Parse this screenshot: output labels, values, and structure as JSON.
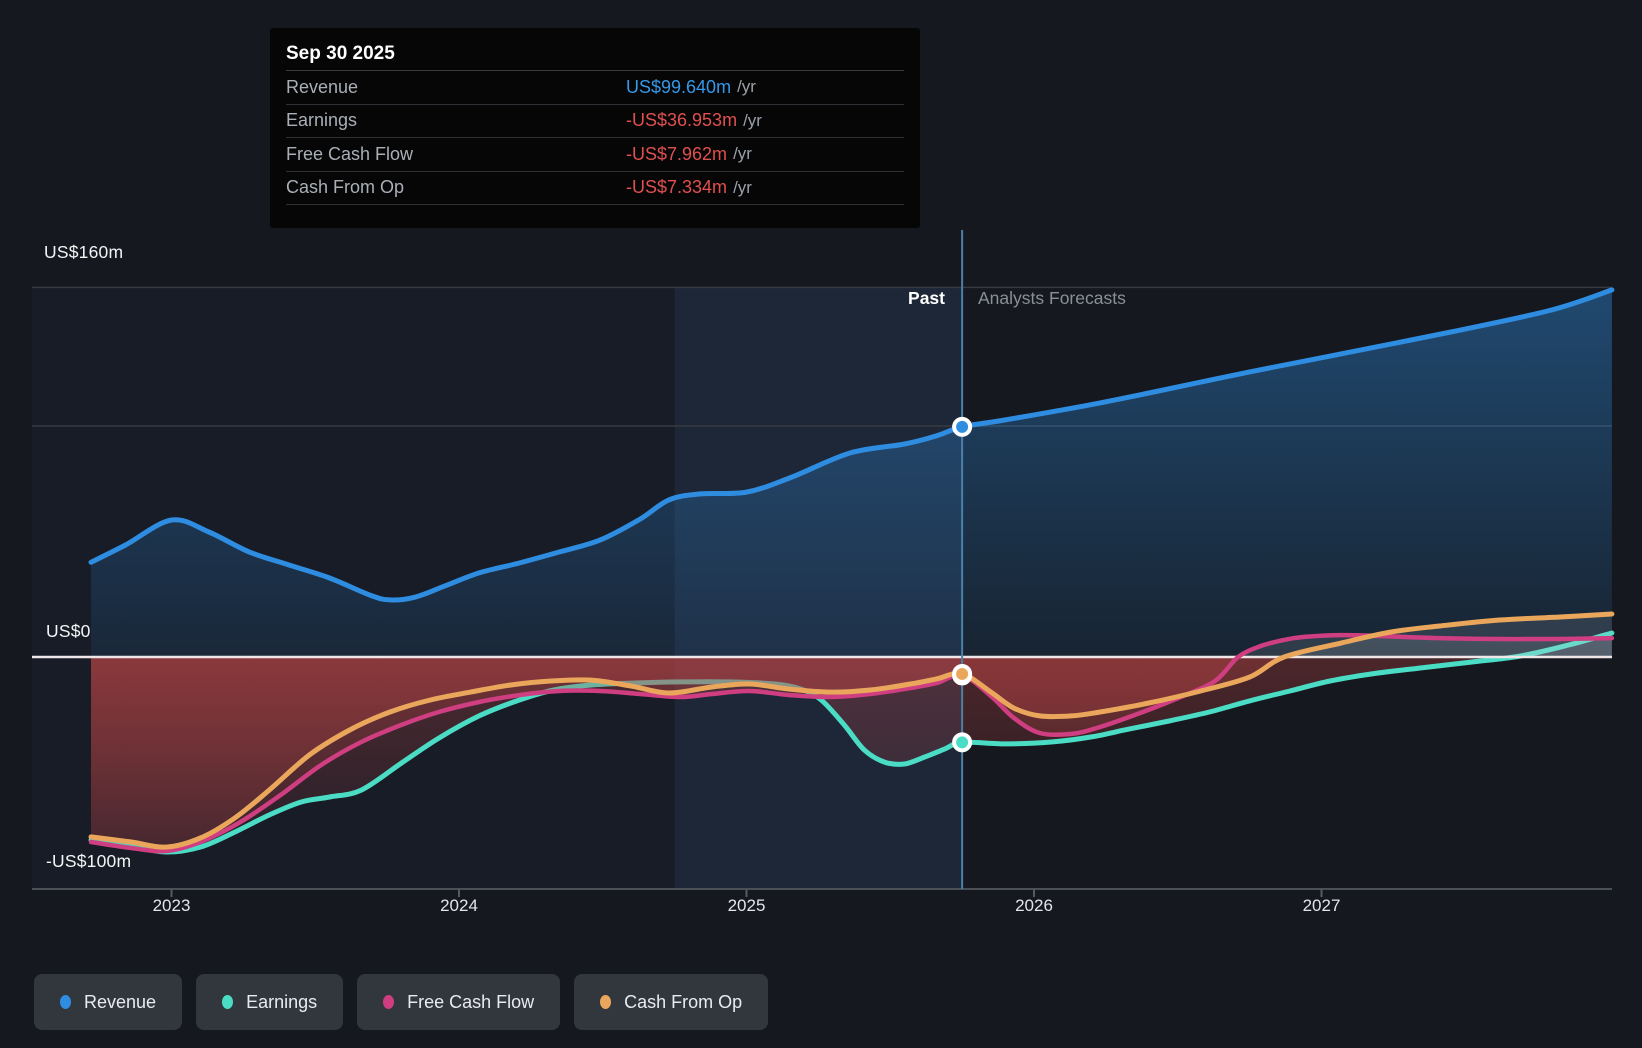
{
  "tooltip": {
    "date": "Sep 30 2025",
    "rows": [
      {
        "label": "Revenue",
        "value": "US$99.640m",
        "unit": "/yr",
        "value_color": "#3598e8"
      },
      {
        "label": "Earnings",
        "value": "-US$36.953m",
        "unit": "/yr",
        "value_color": "#e0504e"
      },
      {
        "label": "Free Cash Flow",
        "value": "-US$7.962m",
        "unit": "/yr",
        "value_color": "#e0504e"
      },
      {
        "label": "Cash From Op",
        "value": "-US$7.334m",
        "unit": "/yr",
        "value_color": "#e0504e"
      }
    ]
  },
  "annotations": {
    "past_label": "Past",
    "forecast_label": "Analysts Forecasts"
  },
  "y_axis": {
    "labels": [
      {
        "text": "US$160m",
        "value": 160
      },
      {
        "text": "US$0",
        "value": 0
      },
      {
        "text": "-US$100m",
        "value": -100
      }
    ],
    "unlabeled_gridline_value": 100
  },
  "x_axis": {
    "ticks": [
      "2023",
      "2024",
      "2025",
      "2026",
      "2027"
    ]
  },
  "legend": [
    {
      "label": "Revenue",
      "color": "#2f8de1"
    },
    {
      "label": "Earnings",
      "color": "#4bdcc5"
    },
    {
      "label": "Free Cash Flow",
      "color": "#cf3e80"
    },
    {
      "label": "Cash From Op",
      "color": "#eaa75c"
    }
  ],
  "colors": {
    "revenue": "#2f8de1",
    "earnings": "#4bdcc5",
    "free_cash_flow": "#cf3e80",
    "cash_from_op": "#eaa75c",
    "negative_value": "#e0504e",
    "positive_blue_value": "#3598e8",
    "divider": "#4b80a8",
    "zero_line": "#efe7e7",
    "gridline": "#363a41",
    "axis_line": "#4a4e55",
    "red_fill": "#c24646",
    "background": "#15181e"
  },
  "chart_data": {
    "type": "area",
    "x_unit": "year_decimal",
    "y_unit": "US$ millions",
    "ylim": [
      -100,
      165
    ],
    "xlim": [
      2022.52,
      2028.02
    ],
    "divider_x": 2025.75,
    "divider_date": "Sep 30 2025",
    "highlight_band_x": [
      2024.75,
      2025.75
    ],
    "gridline_values": [
      160,
      100,
      0,
      -100
    ],
    "series": [
      {
        "name": "Revenue",
        "key": "revenue",
        "points": [
          [
            2022.72,
            41
          ],
          [
            2022.84,
            48.5
          ],
          [
            2023.0,
            59.3
          ],
          [
            2023.13,
            54.1
          ],
          [
            2023.27,
            45.5
          ],
          [
            2023.41,
            39.8
          ],
          [
            2023.55,
            34.2
          ],
          [
            2023.69,
            26.8
          ],
          [
            2023.76,
            24.7
          ],
          [
            2023.85,
            26
          ],
          [
            2023.95,
            30.7
          ],
          [
            2024.07,
            36.4
          ],
          [
            2024.21,
            40.7
          ],
          [
            2024.35,
            45.5
          ],
          [
            2024.49,
            50.6
          ],
          [
            2024.63,
            59.7
          ],
          [
            2024.73,
            68
          ],
          [
            2024.84,
            70.6
          ],
          [
            2025.0,
            71.4
          ],
          [
            2025.15,
            77.5
          ],
          [
            2025.36,
            88.3
          ],
          [
            2025.55,
            92.2
          ],
          [
            2025.66,
            95.7
          ],
          [
            2025.75,
            99.64
          ],
          [
            2025.88,
            102.2
          ],
          [
            2026.06,
            106.1
          ],
          [
            2026.23,
            110
          ],
          [
            2026.4,
            114.3
          ],
          [
            2026.75,
            123.4
          ],
          [
            2027.1,
            132
          ],
          [
            2027.45,
            140.7
          ],
          [
            2027.8,
            150.2
          ],
          [
            2028.01,
            158.9
          ]
        ],
        "marker": [
          2025.75,
          99.64
        ]
      },
      {
        "name": "Earnings",
        "key": "earnings",
        "points": [
          [
            2022.72,
            -79.2
          ],
          [
            2022.86,
            -81.8
          ],
          [
            2022.98,
            -84.4
          ],
          [
            2023.1,
            -82.3
          ],
          [
            2023.22,
            -75.8
          ],
          [
            2023.34,
            -68.4
          ],
          [
            2023.45,
            -62.8
          ],
          [
            2023.55,
            -60.6
          ],
          [
            2023.66,
            -57.6
          ],
          [
            2023.8,
            -45.9
          ],
          [
            2023.93,
            -35.1
          ],
          [
            2024.07,
            -25.5
          ],
          [
            2024.21,
            -18.6
          ],
          [
            2024.33,
            -14.3
          ],
          [
            2024.46,
            -12.1
          ],
          [
            2024.6,
            -11.3
          ],
          [
            2024.77,
            -10.8
          ],
          [
            2024.94,
            -10.8
          ],
          [
            2025.1,
            -11.7
          ],
          [
            2025.19,
            -13.9
          ],
          [
            2025.26,
            -18.6
          ],
          [
            2025.34,
            -29.4
          ],
          [
            2025.41,
            -40.3
          ],
          [
            2025.48,
            -45.5
          ],
          [
            2025.55,
            -46.3
          ],
          [
            2025.62,
            -43.3
          ],
          [
            2025.69,
            -39.8
          ],
          [
            2025.75,
            -36.953
          ],
          [
            2025.9,
            -37.6
          ],
          [
            2026.06,
            -36.8
          ],
          [
            2026.2,
            -34.6
          ],
          [
            2026.33,
            -31.2
          ],
          [
            2026.47,
            -27.7
          ],
          [
            2026.61,
            -23.8
          ],
          [
            2026.75,
            -19
          ],
          [
            2026.89,
            -14.7
          ],
          [
            2027.03,
            -10.4
          ],
          [
            2027.17,
            -7.4
          ],
          [
            2027.34,
            -4.8
          ],
          [
            2027.52,
            -2.2
          ],
          [
            2027.69,
            0.4
          ],
          [
            2027.86,
            5.2
          ],
          [
            2028.01,
            10.4
          ]
        ],
        "marker": [
          2025.75,
          -36.953
        ]
      },
      {
        "name": "Free Cash Flow",
        "key": "free_cash_flow",
        "points": [
          [
            2022.72,
            -80.1
          ],
          [
            2022.86,
            -82.7
          ],
          [
            2022.98,
            -84
          ],
          [
            2023.1,
            -80.1
          ],
          [
            2023.24,
            -71.4
          ],
          [
            2023.38,
            -59.7
          ],
          [
            2023.52,
            -46.8
          ],
          [
            2023.66,
            -36.8
          ],
          [
            2023.8,
            -29.4
          ],
          [
            2023.93,
            -23.8
          ],
          [
            2024.07,
            -19.5
          ],
          [
            2024.21,
            -16.5
          ],
          [
            2024.35,
            -14.7
          ],
          [
            2024.49,
            -14.7
          ],
          [
            2024.63,
            -16
          ],
          [
            2024.77,
            -17.3
          ],
          [
            2024.88,
            -16
          ],
          [
            2025.01,
            -14.7
          ],
          [
            2025.15,
            -16.5
          ],
          [
            2025.29,
            -17.3
          ],
          [
            2025.43,
            -16
          ],
          [
            2025.57,
            -13.4
          ],
          [
            2025.66,
            -11.3
          ],
          [
            2025.75,
            -7.962
          ],
          [
            2025.85,
            -16.9
          ],
          [
            2025.93,
            -26.4
          ],
          [
            2026.02,
            -32.9
          ],
          [
            2026.13,
            -33.3
          ],
          [
            2026.23,
            -30.3
          ],
          [
            2026.37,
            -24.2
          ],
          [
            2026.51,
            -17.3
          ],
          [
            2026.63,
            -10.4
          ],
          [
            2026.71,
            0
          ],
          [
            2026.79,
            4.8
          ],
          [
            2026.87,
            7.4
          ],
          [
            2026.94,
            8.7
          ],
          [
            2027.07,
            9.5
          ],
          [
            2027.2,
            9.1
          ],
          [
            2027.41,
            8.2
          ],
          [
            2027.62,
            7.8
          ],
          [
            2027.83,
            7.8
          ],
          [
            2028.01,
            8.2
          ]
        ],
        "marker": [
          2025.75,
          -7.962
        ]
      },
      {
        "name": "Cash From Op",
        "key": "cash_from_op",
        "points": [
          [
            2022.72,
            -77.9
          ],
          [
            2022.86,
            -80.1
          ],
          [
            2022.98,
            -82.3
          ],
          [
            2023.1,
            -78.4
          ],
          [
            2023.22,
            -69.7
          ],
          [
            2023.34,
            -57.6
          ],
          [
            2023.48,
            -42.4
          ],
          [
            2023.62,
            -31.6
          ],
          [
            2023.76,
            -23.8
          ],
          [
            2023.9,
            -18.6
          ],
          [
            2024.04,
            -15.2
          ],
          [
            2024.18,
            -12.1
          ],
          [
            2024.32,
            -10.4
          ],
          [
            2024.46,
            -10
          ],
          [
            2024.6,
            -12.6
          ],
          [
            2024.73,
            -15.6
          ],
          [
            2024.88,
            -13
          ],
          [
            2025.01,
            -11.7
          ],
          [
            2025.15,
            -13.9
          ],
          [
            2025.29,
            -15.2
          ],
          [
            2025.43,
            -14.3
          ],
          [
            2025.57,
            -11.7
          ],
          [
            2025.66,
            -9.5
          ],
          [
            2025.75,
            -7.334
          ],
          [
            2025.85,
            -15.2
          ],
          [
            2025.93,
            -22.1
          ],
          [
            2026.02,
            -25.5
          ],
          [
            2026.13,
            -25.5
          ],
          [
            2026.23,
            -23.8
          ],
          [
            2026.4,
            -19.9
          ],
          [
            2026.58,
            -14.7
          ],
          [
            2026.75,
            -8.7
          ],
          [
            2026.87,
            0
          ],
          [
            2027.07,
            6.1
          ],
          [
            2027.24,
            10.8
          ],
          [
            2027.41,
            13.4
          ],
          [
            2027.62,
            16
          ],
          [
            2027.83,
            17.3
          ],
          [
            2028.01,
            18.6
          ]
        ],
        "marker": [
          2025.75,
          -7.334
        ]
      }
    ]
  }
}
